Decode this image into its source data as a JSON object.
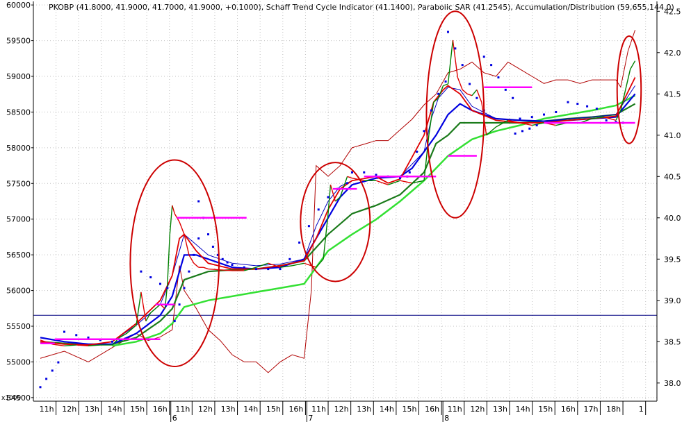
{
  "header": {
    "title": "PKOBP (41.8000, 41.9000, 41.7000, 41.9000, +0.1000), Schaff Trend Cycle Indicator (41.1400), Parabolic SAR (41.2545), Accumulation/Distribution (59,655,144.0)"
  },
  "colors": {
    "price_up": "#008000",
    "price_down": "#e00000",
    "sar": "#0000e0",
    "ma_thin_blue": "#0000c0",
    "ma_dark_green": "#1a7a1a",
    "ma_light_green": "#33e033",
    "ma_red": "#e00000",
    "ad_line": "#b00000",
    "support": "#ff00ff",
    "circle": "#cc0000",
    "hline": "#000080",
    "grid": "#c0c0c0"
  },
  "chart_data": {
    "type": "line",
    "instrument": "PKOBP",
    "left_axis": {
      "ticks": [
        "60000",
        "59500",
        "59000",
        "58500",
        "58000",
        "57500",
        "57000",
        "56500",
        "56000",
        "55500",
        "55000",
        "54500"
      ],
      "tick_values": [
        60000,
        59500,
        59000,
        58500,
        58000,
        57500,
        57000,
        56500,
        56000,
        55500,
        55000,
        54500
      ],
      "range": [
        54450,
        60050
      ],
      "multiplier_label": "x1000"
    },
    "right_axis": {
      "ticks": [
        "42.5",
        "42.0",
        "41.5",
        "41.0",
        "40.5",
        "40.0",
        "39.5",
        "39.0",
        "38.5",
        "38.0"
      ],
      "tick_values": [
        42.5,
        42.0,
        41.5,
        41.0,
        40.5,
        40.0,
        39.5,
        39.0,
        38.5,
        38.0
      ],
      "range": [
        37.78,
        42.62
      ]
    },
    "x_axis": {
      "hour_labels": [
        "11h",
        "12h",
        "13h",
        "14h",
        "15h",
        "16h",
        "11h",
        "12h",
        "13h",
        "14h",
        "15h",
        "16h",
        "11h",
        "12h",
        "13h",
        "14h",
        "15h",
        "16h",
        "11h",
        "12h",
        "13h",
        "14h",
        "15h",
        "16h",
        "17h",
        "18h",
        "1"
      ],
      "day_labels": [
        "6",
        "7",
        "8"
      ],
      "range": [
        0,
        26
      ]
    },
    "horizontal_line": {
      "value": 38.82
    },
    "series": [
      {
        "kind": "price_bars",
        "x": [
          0.0,
          0.5,
          1.0,
          1.5,
          2.0,
          2.5,
          3.0,
          3.3,
          3.6,
          4.0,
          4.2,
          4.4,
          4.6,
          4.8,
          5.0,
          5.2,
          5.3,
          5.4,
          5.5,
          5.6,
          5.7,
          5.8,
          6.0,
          6.2,
          6.4,
          6.6,
          6.8,
          7.0,
          7.5,
          8.0,
          8.5,
          9.0,
          9.5,
          10.0,
          10.5,
          11.0,
          11.5,
          11.8,
          12.0,
          12.1,
          12.3,
          12.5,
          12.8,
          13.0,
          13.5,
          14.0,
          14.5,
          15.0,
          15.5,
          16.0,
          16.2,
          16.4,
          16.6,
          16.8,
          17.0,
          17.2,
          17.4,
          17.6,
          17.8,
          18.0,
          18.2,
          18.4,
          18.6,
          19.0,
          19.5,
          20.0,
          20.5,
          21.0,
          21.5,
          22.0,
          22.5,
          23.0,
          23.5,
          24.0,
          24.2,
          24.4,
          24.6,
          24.8
        ],
        "close": [
          38.52,
          38.47,
          38.45,
          38.46,
          38.45,
          38.46,
          38.46,
          38.55,
          38.6,
          38.7,
          39.1,
          38.75,
          38.85,
          38.9,
          38.95,
          38.9,
          39.2,
          39.8,
          40.15,
          40.05,
          40.0,
          39.95,
          39.8,
          39.55,
          39.45,
          39.4,
          39.4,
          39.38,
          39.37,
          39.36,
          39.36,
          39.4,
          39.45,
          39.4,
          39.42,
          39.45,
          39.4,
          39.5,
          40.05,
          40.4,
          40.2,
          40.25,
          40.5,
          40.48,
          40.45,
          40.45,
          40.4,
          40.45,
          40.42,
          40.45,
          41.0,
          41.4,
          41.45,
          41.6,
          41.62,
          42.15,
          41.7,
          41.55,
          41.5,
          41.48,
          41.55,
          41.4,
          41.0,
          41.1,
          41.18,
          41.15,
          41.12,
          41.15,
          41.12,
          41.15,
          41.15,
          41.2,
          41.22,
          41.18,
          41.3,
          41.55,
          41.8,
          41.9
        ],
        "colors": [
          "u",
          "d",
          "d",
          "u",
          "d",
          "u",
          "u",
          "u",
          "u",
          "u",
          "u",
          "d",
          "u",
          "u",
          "u",
          "d",
          "u",
          "u",
          "u",
          "d",
          "d",
          "d",
          "d",
          "d",
          "d",
          "d",
          "d",
          "d",
          "d",
          "d",
          "d",
          "u",
          "u",
          "d",
          "u",
          "u",
          "d",
          "u",
          "u",
          "u",
          "d",
          "u",
          "u",
          "d",
          "d",
          "u",
          "d",
          "u",
          "d",
          "u",
          "u",
          "u",
          "u",
          "u",
          "u",
          "u",
          "d",
          "d",
          "d",
          "d",
          "u",
          "d",
          "d",
          "u",
          "u",
          "d",
          "d",
          "u",
          "d",
          "u",
          "u",
          "u",
          "u",
          "d",
          "u",
          "u",
          "u",
          "u"
        ]
      },
      {
        "name": "",
        "kind": "ma_light_green",
        "x": [
          3,
          4,
          5,
          5.5,
          6,
          7,
          8,
          9,
          10,
          11,
          12,
          13,
          14,
          15,
          16,
          16.5,
          17,
          18,
          19,
          20,
          21,
          22,
          23,
          24,
          24.8
        ],
        "y": [
          38.45,
          38.5,
          38.6,
          38.72,
          38.92,
          39.0,
          39.05,
          39.1,
          39.15,
          39.2,
          39.6,
          39.8,
          39.98,
          40.2,
          40.45,
          40.6,
          40.75,
          40.95,
          41.05,
          41.12,
          41.2,
          41.25,
          41.3,
          41.36,
          41.48
        ]
      },
      {
        "name": "",
        "kind": "ma_dark_green",
        "x": [
          0,
          1,
          2,
          3,
          4,
          5,
          5.5,
          6,
          7,
          8,
          9,
          10,
          11,
          12,
          13,
          14,
          15,
          16,
          16.5,
          17,
          17.5,
          18,
          19,
          20,
          21,
          22,
          23,
          24,
          24.8
        ],
        "y": [
          38.5,
          38.48,
          38.46,
          38.47,
          38.55,
          38.75,
          38.9,
          39.25,
          39.35,
          39.37,
          39.38,
          39.42,
          39.48,
          39.8,
          40.05,
          40.15,
          40.28,
          40.55,
          40.9,
          41.0,
          41.15,
          41.15,
          41.15,
          41.15,
          41.17,
          41.2,
          41.22,
          41.25,
          41.38
        ]
      },
      {
        "name": "",
        "kind": "ma_thin_blue",
        "x": [
          0,
          1,
          2,
          3,
          4,
          5,
          5.5,
          6,
          7,
          8,
          9,
          10,
          11,
          11.5,
          12,
          12.5,
          13,
          14,
          15,
          16,
          16.3,
          16.6,
          17,
          17.5,
          18,
          19,
          20,
          21,
          22,
          23,
          24,
          24.8
        ],
        "y": [
          38.5,
          38.47,
          38.46,
          38.5,
          38.7,
          38.95,
          39.3,
          39.8,
          39.55,
          39.45,
          39.42,
          39.44,
          39.5,
          39.9,
          40.2,
          40.38,
          40.45,
          40.5,
          40.5,
          40.8,
          41.2,
          41.45,
          41.58,
          41.55,
          41.35,
          41.2,
          41.18,
          41.17,
          41.2,
          41.22,
          41.25,
          41.6
        ]
      },
      {
        "name": "",
        "kind": "ma_red",
        "x": [
          0,
          1,
          2,
          3,
          4,
          5,
          5.5,
          5.8,
          6,
          6.5,
          7,
          8,
          9,
          10,
          11,
          11.5,
          12,
          12.5,
          13,
          14,
          14.5,
          15,
          16,
          16.4,
          16.8,
          17,
          17.5,
          18,
          19,
          20,
          21,
          22,
          23,
          24,
          24.8
        ],
        "y": [
          38.5,
          38.47,
          38.46,
          38.5,
          38.72,
          39.0,
          39.3,
          39.75,
          39.8,
          39.6,
          39.45,
          39.38,
          39.38,
          39.42,
          39.48,
          39.75,
          40.1,
          40.35,
          40.45,
          40.5,
          40.42,
          40.47,
          41.0,
          41.4,
          41.55,
          41.6,
          41.5,
          41.3,
          41.18,
          41.15,
          41.15,
          41.18,
          41.2,
          41.23,
          41.7
        ]
      },
      {
        "name": "",
        "kind": "ma_blue_thick",
        "x": [
          0,
          1,
          2,
          3,
          4,
          5,
          5.5,
          6,
          6.5,
          7,
          8,
          9,
          10,
          11,
          11.5,
          12,
          12.5,
          13,
          14,
          15,
          15.5,
          16,
          16.5,
          17,
          17.5,
          18,
          19,
          20,
          21,
          22,
          23,
          24,
          24.8
        ],
        "y": [
          38.55,
          38.5,
          38.47,
          38.47,
          38.6,
          38.82,
          39.05,
          39.55,
          39.55,
          39.5,
          39.4,
          39.38,
          39.4,
          39.5,
          39.75,
          40.0,
          40.25,
          40.4,
          40.48,
          40.5,
          40.6,
          40.8,
          41.0,
          41.25,
          41.38,
          41.3,
          41.2,
          41.18,
          41.17,
          41.18,
          41.2,
          41.22,
          41.5
        ]
      },
      {
        "name": "",
        "kind": "ad_line",
        "x": [
          0,
          1,
          2,
          3,
          4,
          4.5,
          5,
          5.5,
          5.8,
          6,
          6.5,
          7,
          7.5,
          8,
          8.5,
          9,
          9.5,
          10,
          10.5,
          11,
          11.3,
          11.5,
          12,
          12.5,
          13,
          13.5,
          14,
          14.5,
          15,
          15.5,
          16,
          16.5,
          17,
          17.5,
          18,
          18.5,
          19,
          19.5,
          20,
          20.5,
          21,
          21.5,
          22,
          22.5,
          23,
          23.5,
          24,
          24.2,
          24.5,
          24.8
        ],
        "y": [
          55050,
          55150,
          55000,
          55200,
          55400,
          55300,
          55350,
          55450,
          56350,
          56000,
          55750,
          55450,
          55300,
          55100,
          55000,
          55000,
          54850,
          55000,
          55100,
          55050,
          56000,
          57750,
          57600,
          57750,
          58000,
          58050,
          58100,
          58100,
          58250,
          58400,
          58600,
          58750,
          59050,
          59100,
          59200,
          59050,
          59000,
          59200,
          59100,
          59000,
          58900,
          58950,
          58950,
          58900,
          58950,
          58950,
          58950,
          58850,
          59350,
          59650
        ]
      },
      {
        "name": "",
        "kind": "sar_dots",
        "segments": [
          {
            "x": [
              0,
              0.25,
              0.5,
              0.75
            ],
            "y": [
              37.95,
              38.05,
              38.15,
              38.25
            ]
          },
          {
            "x": [
              1,
              1.5,
              2,
              2.5,
              3
            ],
            "y": [
              38.62,
              38.58,
              38.55,
              38.52,
              38.5
            ]
          },
          {
            "x": [
              4.2,
              4.6,
              5.0,
              5.3
            ],
            "y": [
              39.35,
              39.28,
              39.2,
              39.15
            ]
          },
          {
            "x": [
              5.6,
              5.8,
              6.0,
              6.2,
              6.4,
              6.6
            ],
            "y": [
              38.75,
              38.95,
              39.15,
              39.35,
              39.55,
              39.75
            ]
          },
          {
            "x": [
              6.6,
              6.8,
              7.0,
              7.2,
              7.4,
              7.6,
              7.8,
              8,
              8.5,
              9,
              9.5,
              10
            ],
            "y": [
              40.2,
              40.0,
              39.8,
              39.65,
              39.55,
              39.5,
              39.46,
              39.43,
              39.4,
              39.38,
              39.38,
              39.38
            ]
          },
          {
            "x": [
              10.4,
              10.8,
              11.2,
              11.6,
              12.0,
              12.4,
              12.8
            ],
            "y": [
              39.5,
              39.7,
              39.9,
              40.1,
              40.25,
              40.35,
              40.42
            ]
          },
          {
            "x": [
              13.0,
              13.5,
              14.0,
              14.5,
              15.0,
              15.3
            ],
            "y": [
              40.55,
              40.55,
              40.52,
              40.5,
              40.48,
              40.5
            ]
          },
          {
            "x": [
              15.4,
              15.7,
              16.0,
              16.3,
              16.6,
              16.9
            ],
            "y": [
              40.55,
              40.8,
              41.05,
              41.3,
              41.5,
              41.65
            ]
          },
          {
            "x": [
              17.0,
              17.3,
              17.6,
              17.9,
              18.2,
              18.5
            ],
            "y": [
              42.25,
              42.05,
              41.85,
              41.62,
              41.45,
              41.3
            ]
          },
          {
            "x": [
              18.5,
              18.8,
              19.1,
              19.4,
              19.7
            ],
            "y": [
              41.95,
              41.85,
              41.7,
              41.55,
              41.45
            ]
          },
          {
            "x": [
              20.0,
              20.5,
              21.0,
              21.5
            ],
            "y": [
              41.2,
              41.22,
              41.25,
              41.28
            ]
          },
          {
            "x": [
              19.8,
              20.1,
              20.4,
              20.7
            ],
            "y": [
              41.02,
              41.05,
              41.08,
              41.12
            ]
          },
          {
            "x": [
              22.0,
              22.4,
              22.8,
              23.2
            ],
            "y": [
              41.4,
              41.38,
              41.35,
              41.32
            ]
          },
          {
            "x": [
              23.6,
              24.0,
              24.3
            ],
            "y": [
              41.18,
              41.16,
              41.15
            ]
          }
        ]
      },
      {
        "name": "",
        "kind": "support_levels",
        "levels": [
          {
            "x1": 0,
            "x2": 0.6,
            "y": 38.48
          },
          {
            "x1": 0.6,
            "x2": 5.0,
            "y": 38.53
          },
          {
            "x1": 4.8,
            "x2": 5.6,
            "y": 38.95
          },
          {
            "x1": 5.7,
            "x2": 8.6,
            "y": 40.0
          },
          {
            "x1": 12.2,
            "x2": 13.2,
            "y": 40.35
          },
          {
            "x1": 13.5,
            "x2": 16.5,
            "y": 40.5
          },
          {
            "x1": 17.0,
            "x2": 18.2,
            "y": 40.75
          },
          {
            "x1": 18.5,
            "x2": 20.5,
            "y": 41.58
          },
          {
            "x1": 21.0,
            "x2": 24.8,
            "y": 41.15
          }
        ]
      },
      {
        "name": "",
        "kind": "ellipses",
        "items": [
          {
            "cx": 5.6,
            "cy": 39.45,
            "rx": 1.85,
            "ry": 1.25
          },
          {
            "cx": 12.3,
            "cy": 39.95,
            "rx": 1.45,
            "ry": 0.72
          },
          {
            "cx": 17.3,
            "cy": 41.25,
            "rx": 1.2,
            "ry": 1.25
          },
          {
            "cx": 24.55,
            "cy": 41.55,
            "rx": 0.5,
            "ry": 0.65
          }
        ]
      }
    ]
  }
}
